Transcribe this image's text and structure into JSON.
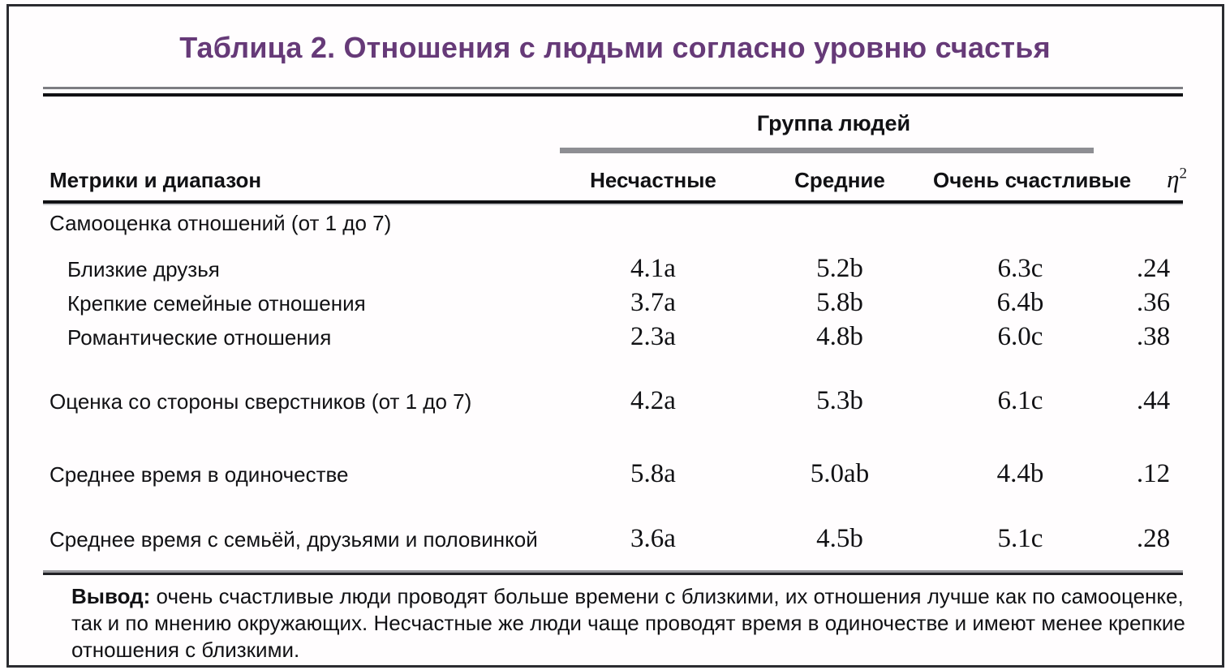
{
  "page": {
    "title": "Таблица 2. Отношения с людьми согласно уровню счастья"
  },
  "colors": {
    "title_purple": "#663a78",
    "frame_border": "#2b2b30",
    "group_underline_grey": "#8e8e93",
    "rule_black": "#111114"
  },
  "table": {
    "group_header": "Группа людей",
    "metrics_header": "Метрики и диапазон",
    "columns": [
      "Несчастные",
      "Средние",
      "Очень счастливые"
    ],
    "eta_base": "η",
    "eta_sup": "2",
    "rows": [
      {
        "label": "Самооценка отношений (от 1 до 7)",
        "values": [
          "",
          "",
          "",
          ""
        ]
      },
      {
        "label": "Близкие друзья",
        "values": [
          "4.1a",
          "5.2b",
          "6.3c",
          ".24"
        ]
      },
      {
        "label": "Крепкие семейные отношения",
        "values": [
          "3.7a",
          "5.8b",
          "6.4b",
          ".36"
        ]
      },
      {
        "label": "Романтические отношения",
        "values": [
          "2.3a",
          "4.8b",
          "6.0c",
          ".38"
        ]
      },
      {
        "label": "Оценка со стороны сверстников (от 1 до 7)",
        "values": [
          "4.2a",
          "5.3b",
          "6.1c",
          ".44"
        ]
      },
      {
        "label": "Среднее время в одиночестве",
        "values": [
          "5.8a",
          "5.0ab",
          "4.4b",
          ".12"
        ]
      },
      {
        "label": "Среднее время с семьёй, друзьями и половинкой",
        "values": [
          "3.6a",
          "4.5b",
          "5.1c",
          ".28"
        ]
      }
    ]
  },
  "footer": {
    "label": "Вывод:",
    "text": " очень счастливые люди проводят больше времени с близкими, их отношения лучше как по самооценке, так и по мнению окружающих. Несчастные же люди чаще проводят время в одиночестве и имеют менее крепкие отношения с близкими."
  },
  "chart_data": {
    "type": "table",
    "title": "Таблица 2. Отношения с людьми согласно уровню счастья",
    "group_header": "Группа людей",
    "columns": [
      "Метрики и диапазон",
      "Несчастные",
      "Средние",
      "Очень счастливые",
      "η2"
    ],
    "rows": [
      [
        "Самооценка отношений (от 1 до 7)",
        "",
        "",
        "",
        ""
      ],
      [
        "Близкие друзья",
        "4.1a",
        "5.2b",
        "6.3c",
        ".24"
      ],
      [
        "Крепкие семейные отношения",
        "3.7a",
        "5.8b",
        "6.4b",
        ".36"
      ],
      [
        "Романтические отношения",
        "2.3a",
        "4.8b",
        "6.0c",
        ".38"
      ],
      [
        "Оценка со стороны сверстников (от 1 до 7)",
        "4.2a",
        "5.3b",
        "6.1c",
        ".44"
      ],
      [
        "Среднее время в одиночестве",
        "5.8a",
        "5.0ab",
        "4.4b",
        ".12"
      ],
      [
        "Среднее время с семьёй, друзьями и половинкой",
        "3.6a",
        "4.5b",
        "5.1c",
        ".28"
      ]
    ],
    "note": "Вывод: очень счастливые люди проводят больше времени с близкими, их отношения лучше как по самооценке, так и по мнению окружающих. Несчастные же люди чаще проводят время в одиночестве и имеют менее крепкие отношения с близкими."
  }
}
